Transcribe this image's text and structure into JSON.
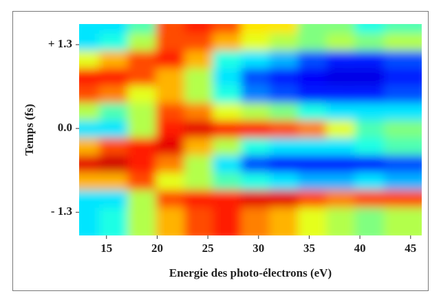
{
  "chart_data": {
    "type": "heatmap",
    "colormap": "jet",
    "xlabel": "Energie des photo-électrons (eV)",
    "ylabel": "Temps (fs)",
    "x": [
      13.7,
      16.5,
      19.3,
      22.1,
      24.9,
      27.7,
      30.5,
      33.3,
      36.1,
      38.9,
      41.7,
      44.6
    ],
    "y": [
      1.48,
      1.21,
      0.94,
      0.67,
      0.4,
      0.13,
      -0.14,
      -0.41,
      -0.68,
      -0.95,
      -1.22,
      -1.49
    ],
    "z": [
      [
        0.35,
        0.35,
        0.45,
        0.8,
        0.85,
        0.8,
        0.65,
        0.65,
        0.5,
        0.5,
        0.4,
        0.45
      ],
      [
        0.35,
        0.4,
        0.55,
        0.8,
        0.8,
        0.7,
        0.6,
        0.55,
        0.5,
        0.55,
        0.5,
        0.55
      ],
      [
        0.6,
        0.7,
        0.8,
        0.85,
        0.7,
        0.4,
        0.35,
        0.3,
        0.2,
        0.15,
        0.15,
        0.2
      ],
      [
        0.85,
        0.85,
        0.8,
        0.7,
        0.55,
        0.35,
        0.2,
        0.15,
        0.12,
        0.1,
        0.1,
        0.15
      ],
      [
        0.8,
        0.75,
        0.6,
        0.7,
        0.55,
        0.4,
        0.25,
        0.2,
        0.15,
        0.15,
        0.15,
        0.2
      ],
      [
        0.55,
        0.45,
        0.55,
        0.8,
        0.75,
        0.6,
        0.55,
        0.5,
        0.4,
        0.35,
        0.35,
        0.35
      ],
      [
        0.35,
        0.35,
        0.55,
        0.85,
        0.9,
        0.85,
        0.85,
        0.8,
        0.75,
        0.6,
        0.45,
        0.5
      ],
      [
        0.7,
        0.8,
        0.85,
        0.9,
        0.7,
        0.55,
        0.4,
        0.35,
        0.35,
        0.35,
        0.4,
        0.45
      ],
      [
        0.9,
        0.92,
        0.85,
        0.75,
        0.55,
        0.35,
        0.2,
        0.15,
        0.15,
        0.15,
        0.15,
        0.2
      ],
      [
        0.7,
        0.7,
        0.8,
        0.6,
        0.55,
        0.45,
        0.4,
        0.35,
        0.3,
        0.3,
        0.35,
        0.3
      ],
      [
        0.35,
        0.35,
        0.55,
        0.8,
        0.85,
        0.85,
        0.9,
        0.9,
        0.8,
        0.75,
        0.8,
        0.8
      ],
      [
        0.35,
        0.4,
        0.55,
        0.7,
        0.8,
        0.85,
        0.75,
        0.7,
        0.6,
        0.55,
        0.5,
        0.55
      ]
    ],
    "zlim": [
      0,
      1
    ],
    "xlim": [
      12.3,
      46.1
    ],
    "ylim": [
      -1.66,
      1.62
    ],
    "xticks": [
      15,
      20,
      25,
      30,
      35,
      40,
      45
    ],
    "yticks": [
      {
        "value": -1.3,
        "label": "- 1.3"
      },
      {
        "value": 0,
        "label": "0.0"
      },
      {
        "value": 1.3,
        "label": "+ 1.3"
      }
    ]
  }
}
